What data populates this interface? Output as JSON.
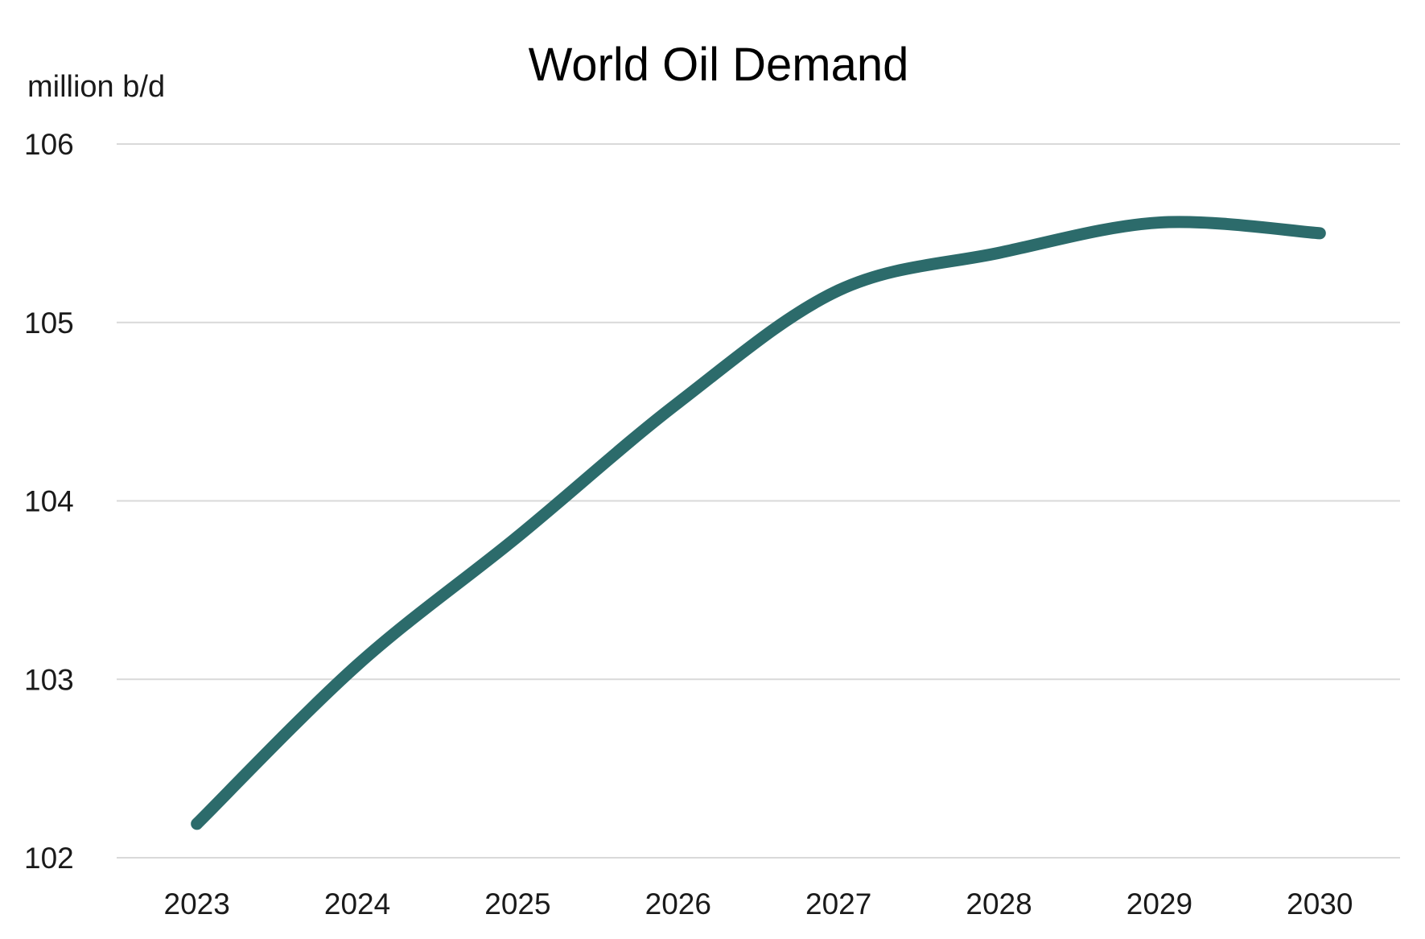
{
  "chart_data": {
    "type": "line",
    "title": "World Oil Demand",
    "ylabel": "million b/d",
    "xlabel": "",
    "x": [
      "2023",
      "2024",
      "2025",
      "2026",
      "2027",
      "2028",
      "2029",
      "2030"
    ],
    "series": [
      {
        "values": [
          102.19,
          103.08,
          103.8,
          104.55,
          105.18,
          105.39,
          105.56,
          105.5
        ],
        "color": "#2c6b6b"
      }
    ],
    "ylim": [
      102,
      106
    ],
    "yticks": [
      102,
      103,
      104,
      105,
      106
    ],
    "grid": true,
    "legend": "none"
  }
}
